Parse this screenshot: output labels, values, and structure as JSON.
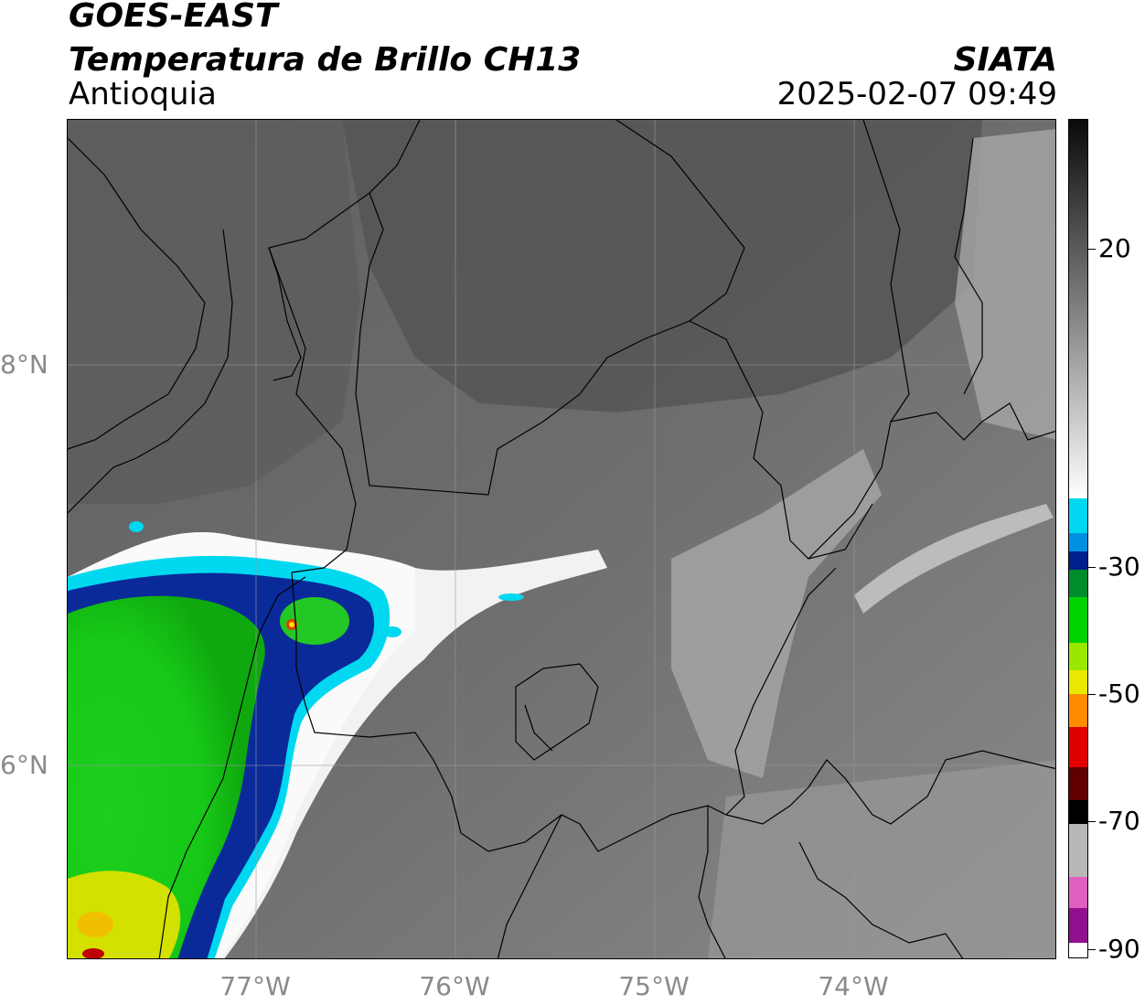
{
  "header": {
    "satellite": "GOES-EAST",
    "product": "Temperatura de Brillo CH13",
    "region": "Antioquia",
    "agency": "SIATA",
    "datetime": "2025-02-07 09:49"
  },
  "axes": {
    "lat_labels": [
      "8°N",
      "6°N"
    ],
    "lon_labels": [
      "77°W",
      "76°W",
      "75°W",
      "74°W"
    ]
  },
  "colorbar": {
    "ticks": [
      "20",
      "-30",
      "-50",
      "-70",
      "-90"
    ],
    "colors": {
      "warm_dark": "#111111",
      "warm_light": "#f5f5f5",
      "cyan": "#00d8f0",
      "blue": "#001f8c",
      "green": "#00d200",
      "yellow": "#e8e800",
      "orange": "#ff8c00",
      "red": "#e00000",
      "black": "#000000",
      "pink": "#e060c0",
      "purple": "#901090"
    }
  }
}
